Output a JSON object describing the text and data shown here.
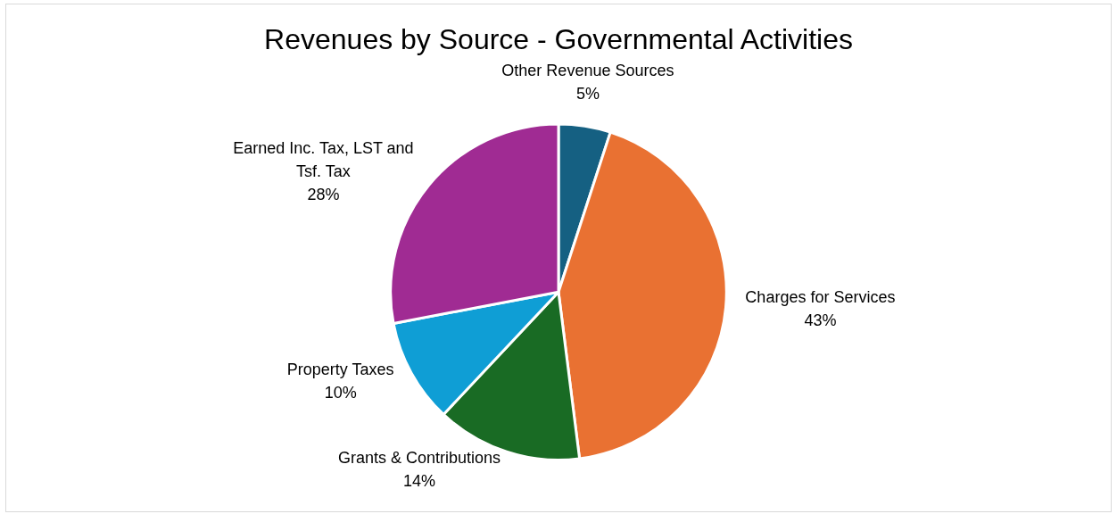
{
  "chart_data": {
    "type": "pie",
    "title": "Revenues by Source - Governmental Activities",
    "categories": [
      "Other Revenue Sources",
      "Charges for Services",
      "Grants & Contributions",
      "Property Taxes",
      "Earned Inc. Tax, LST and Tsf. Tax"
    ],
    "values": [
      5,
      43,
      14,
      10,
      28
    ],
    "colors": [
      "#156082",
      "#e97132",
      "#196b24",
      "#0f9ed5",
      "#a02b93"
    ],
    "value_labels": [
      "5%",
      "43%",
      "14%",
      "10%",
      "28%"
    ],
    "legend": false
  }
}
